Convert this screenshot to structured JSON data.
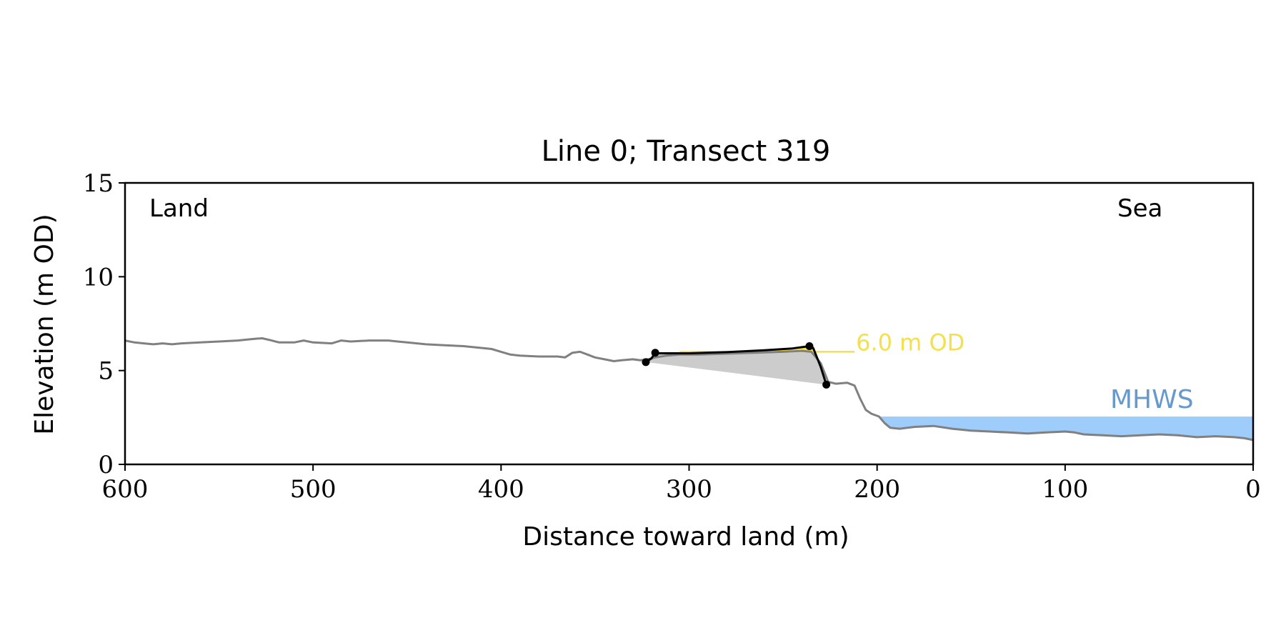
{
  "chart_data": {
    "type": "line",
    "title": "Line 0; Transect 319",
    "xlabel": "Distance toward land (m)",
    "ylabel": "Elevation (m OD)",
    "xlim": [
      600,
      0
    ],
    "ylim": [
      0,
      15
    ],
    "x_ticks": [
      "600",
      "500",
      "400",
      "300",
      "200",
      "100",
      "0"
    ],
    "y_ticks": [
      "0",
      "5",
      "10",
      "15"
    ],
    "grid": false,
    "annotations": {
      "land": "Land",
      "sea": "Sea",
      "reference_level": "6.0 m OD",
      "mhws": "MHWS"
    },
    "reference_level_value": 6.0,
    "mhws_value": 2.55,
    "mhws_x_range": [
      200,
      0
    ],
    "colors": {
      "profile": "#808080",
      "dune_outline": "#000000",
      "dune_fill": "#cccccc",
      "above_level_fill": "#ffe135",
      "reference_level_line": "#f5e04a",
      "mhws_fill": "#9fcdfb",
      "mhws_label": "#6699cc"
    },
    "series": [
      {
        "role": "transect-profile",
        "points": [
          [
            600,
            6.6
          ],
          [
            595,
            6.5
          ],
          [
            590,
            6.45
          ],
          [
            585,
            6.4
          ],
          [
            580,
            6.45
          ],
          [
            575,
            6.4
          ],
          [
            570,
            6.45
          ],
          [
            560,
            6.5
          ],
          [
            550,
            6.55
          ],
          [
            540,
            6.6
          ],
          [
            535,
            6.65
          ],
          [
            530,
            6.7
          ],
          [
            527,
            6.72
          ],
          [
            522,
            6.6
          ],
          [
            518,
            6.5
          ],
          [
            510,
            6.5
          ],
          [
            505,
            6.6
          ],
          [
            500,
            6.5
          ],
          [
            490,
            6.45
          ],
          [
            485,
            6.6
          ],
          [
            480,
            6.55
          ],
          [
            470,
            6.6
          ],
          [
            460,
            6.6
          ],
          [
            455,
            6.55
          ],
          [
            450,
            6.5
          ],
          [
            440,
            6.4
          ],
          [
            430,
            6.35
          ],
          [
            420,
            6.3
          ],
          [
            410,
            6.2
          ],
          [
            405,
            6.15
          ],
          [
            400,
            6.0
          ],
          [
            395,
            5.85
          ],
          [
            390,
            5.8
          ],
          [
            380,
            5.75
          ],
          [
            370,
            5.75
          ],
          [
            366,
            5.7
          ],
          [
            362,
            5.95
          ],
          [
            358,
            6.0
          ],
          [
            354,
            5.85
          ],
          [
            350,
            5.7
          ],
          [
            345,
            5.6
          ],
          [
            340,
            5.5
          ],
          [
            336,
            5.55
          ],
          [
            330,
            5.6
          ],
          [
            326,
            5.55
          ],
          [
            322,
            5.6
          ],
          [
            318,
            5.7
          ],
          [
            312,
            5.8
          ],
          [
            305,
            5.85
          ],
          [
            295,
            5.85
          ],
          [
            280,
            5.9
          ],
          [
            265,
            5.95
          ],
          [
            250,
            6.0
          ],
          [
            240,
            6.05
          ],
          [
            235,
            6.0
          ],
          [
            230,
            5.4
          ],
          [
            226,
            4.4
          ],
          [
            222,
            4.3
          ],
          [
            216,
            4.35
          ],
          [
            212,
            4.2
          ],
          [
            209,
            3.5
          ],
          [
            206,
            2.9
          ],
          [
            203,
            2.7
          ],
          [
            199,
            2.55
          ],
          [
            196,
            2.2
          ],
          [
            193,
            1.95
          ],
          [
            188,
            1.9
          ],
          [
            180,
            2.0
          ],
          [
            170,
            2.05
          ],
          [
            160,
            1.9
          ],
          [
            150,
            1.8
          ],
          [
            140,
            1.75
          ],
          [
            130,
            1.7
          ],
          [
            120,
            1.65
          ],
          [
            110,
            1.7
          ],
          [
            100,
            1.75
          ],
          [
            95,
            1.7
          ],
          [
            90,
            1.6
          ],
          [
            80,
            1.55
          ],
          [
            70,
            1.5
          ],
          [
            60,
            1.55
          ],
          [
            50,
            1.6
          ],
          [
            40,
            1.55
          ],
          [
            30,
            1.45
          ],
          [
            20,
            1.5
          ],
          [
            10,
            1.45
          ],
          [
            5,
            1.4
          ],
          [
            0,
            1.3
          ]
        ]
      },
      {
        "role": "dune-crest-outline",
        "points": [
          [
            323,
            5.45
          ],
          [
            320,
            5.65
          ],
          [
            318,
            5.95
          ],
          [
            316,
            5.92
          ],
          [
            300,
            5.92
          ],
          [
            280,
            5.98
          ],
          [
            260,
            6.08
          ],
          [
            245,
            6.18
          ],
          [
            236,
            6.3
          ],
          [
            234,
            6.2
          ],
          [
            230,
            5.2
          ],
          [
            227,
            4.25
          ]
        ]
      },
      {
        "role": "dune-base-line",
        "points": [
          [
            323,
            5.45
          ],
          [
            227,
            4.25
          ]
        ]
      }
    ],
    "markers": [
      [
        323,
        5.45
      ],
      [
        318,
        5.95
      ],
      [
        236,
        6.3
      ],
      [
        227,
        4.25
      ]
    ]
  }
}
